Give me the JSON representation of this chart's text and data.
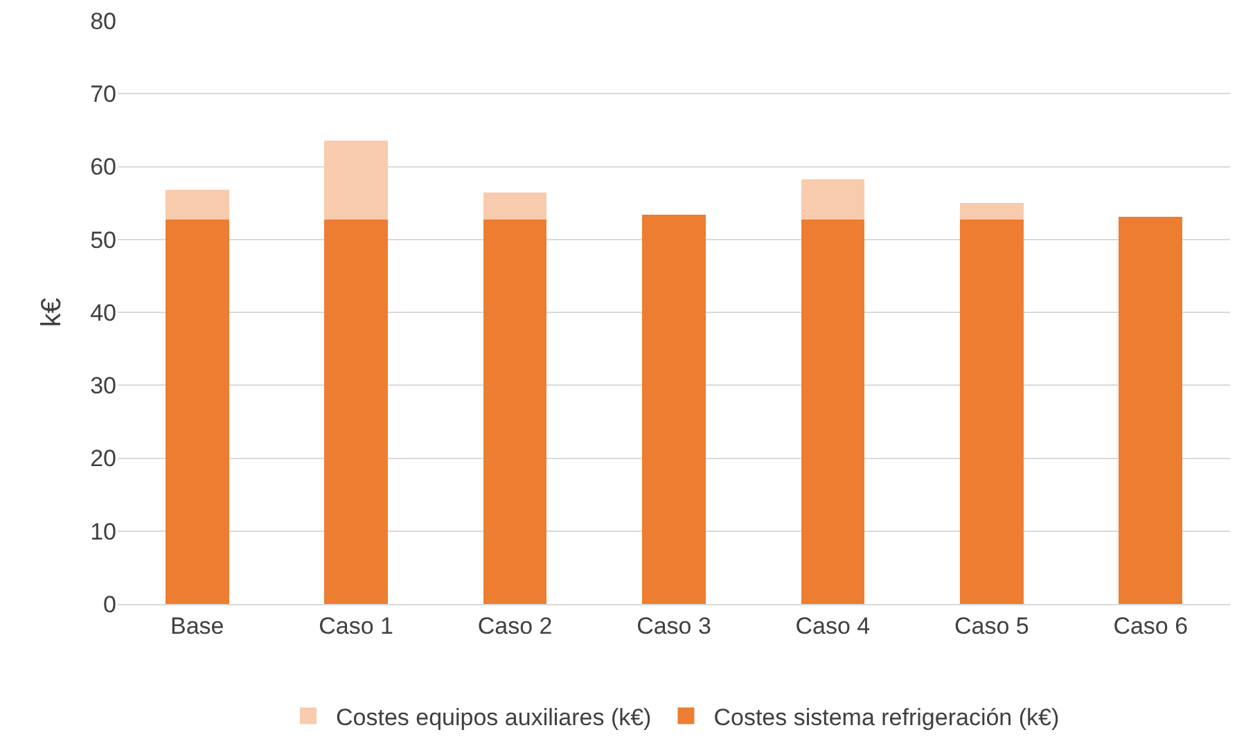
{
  "chart_data": {
    "type": "bar",
    "stacked": true,
    "ylabel": "k€",
    "categories": [
      "Base",
      "Caso 1",
      "Caso 2",
      "Caso 3",
      "Caso 4",
      "Caso 5",
      "Caso 6"
    ],
    "series": [
      {
        "name": "Costes sistema refrigeración (k€)",
        "color": "#ed7d31",
        "values": [
          52.7,
          52.7,
          52.7,
          53.4,
          52.7,
          52.7,
          53.1
        ]
      },
      {
        "name": "Costes equipos auxiliares (k€)",
        "color": "#f8cbad",
        "values": [
          4.1,
          10.9,
          3.7,
          0,
          5.5,
          2.3,
          0
        ]
      }
    ],
    "ylim": [
      0,
      80
    ],
    "yticks": [
      0,
      10,
      20,
      30,
      40,
      50,
      60,
      70,
      80
    ],
    "grid": "y",
    "legend": "bottom"
  }
}
